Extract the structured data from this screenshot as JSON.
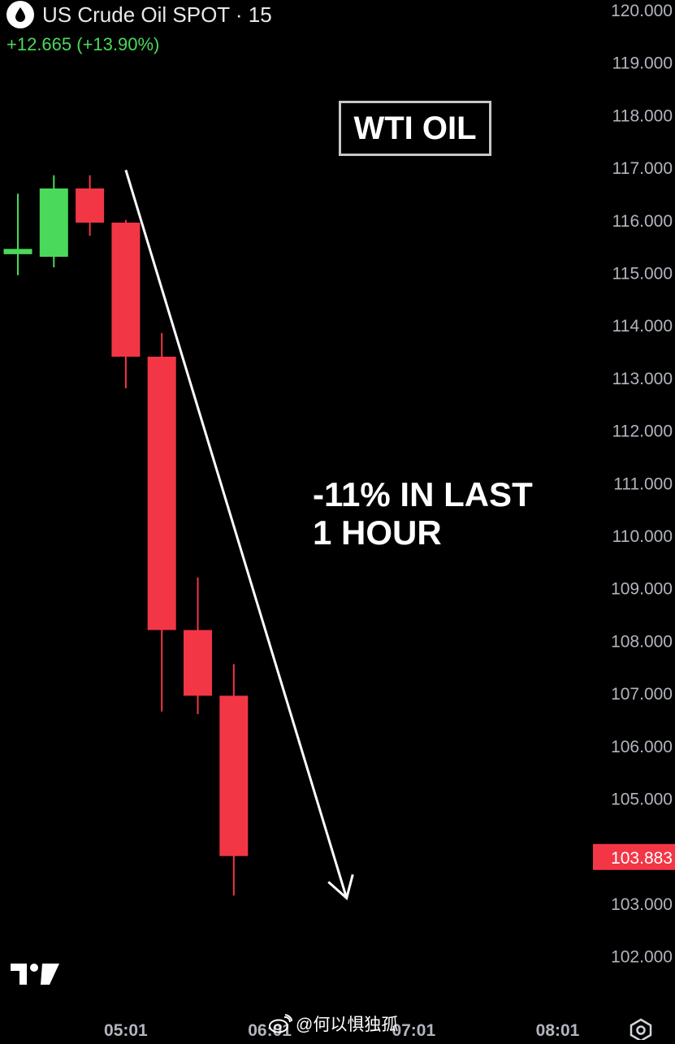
{
  "header": {
    "symbol_title": "US Crude Oil SPOT · 15",
    "change_text": "+12.665 (+13.90%)"
  },
  "badge_text": "WTI OIL",
  "annotation": {
    "line1": "-11% IN LAST",
    "line2": "1 HOUR"
  },
  "watermark_text": "@何以惧独孤",
  "icons": {
    "symbol": "oil-drop-icon",
    "logo": "tradingview-logo",
    "settings": "settings-icon",
    "watermark": "weibo-icon"
  },
  "colors": {
    "background": "#000000",
    "up": "#4ad95a",
    "down": "#f23645",
    "change_text": "#4ad95a",
    "axis_text": "#b2b5be",
    "price_tag": "#f23645"
  },
  "chart_data": {
    "type": "candlestick",
    "timeframe": "15",
    "x_ticks": [
      "05:01",
      "06:01",
      "07:01",
      "08:01"
    ],
    "y_ticks": [
      "120.000",
      "119.000",
      "118.000",
      "117.000",
      "116.000",
      "115.000",
      "114.000",
      "113.000",
      "112.000",
      "111.000",
      "110.000",
      "109.000",
      "108.000",
      "107.000",
      "106.000",
      "105.000",
      "104.000",
      "103.000",
      "102.000"
    ],
    "ylim": [
      101.5,
      120.2
    ],
    "current_price": "103.883",
    "candles": [
      {
        "open": 115.35,
        "high": 116.5,
        "low": 114.95,
        "close": 115.45
      },
      {
        "open": 115.3,
        "high": 116.85,
        "low": 115.1,
        "close": 116.6
      },
      {
        "open": 116.6,
        "high": 116.85,
        "low": 115.7,
        "close": 115.95
      },
      {
        "open": 115.95,
        "high": 116.0,
        "low": 112.8,
        "close": 113.4
      },
      {
        "open": 113.4,
        "high": 113.85,
        "low": 106.65,
        "close": 108.2
      },
      {
        "open": 108.2,
        "high": 109.2,
        "low": 106.6,
        "close": 106.95
      },
      {
        "open": 106.95,
        "high": 107.55,
        "low": 103.15,
        "close": 103.9
      }
    ],
    "trend_arrow": {
      "from_candle": 3,
      "from_price": 116.95,
      "to_candle": 9.0,
      "to_price": 103.1
    }
  }
}
